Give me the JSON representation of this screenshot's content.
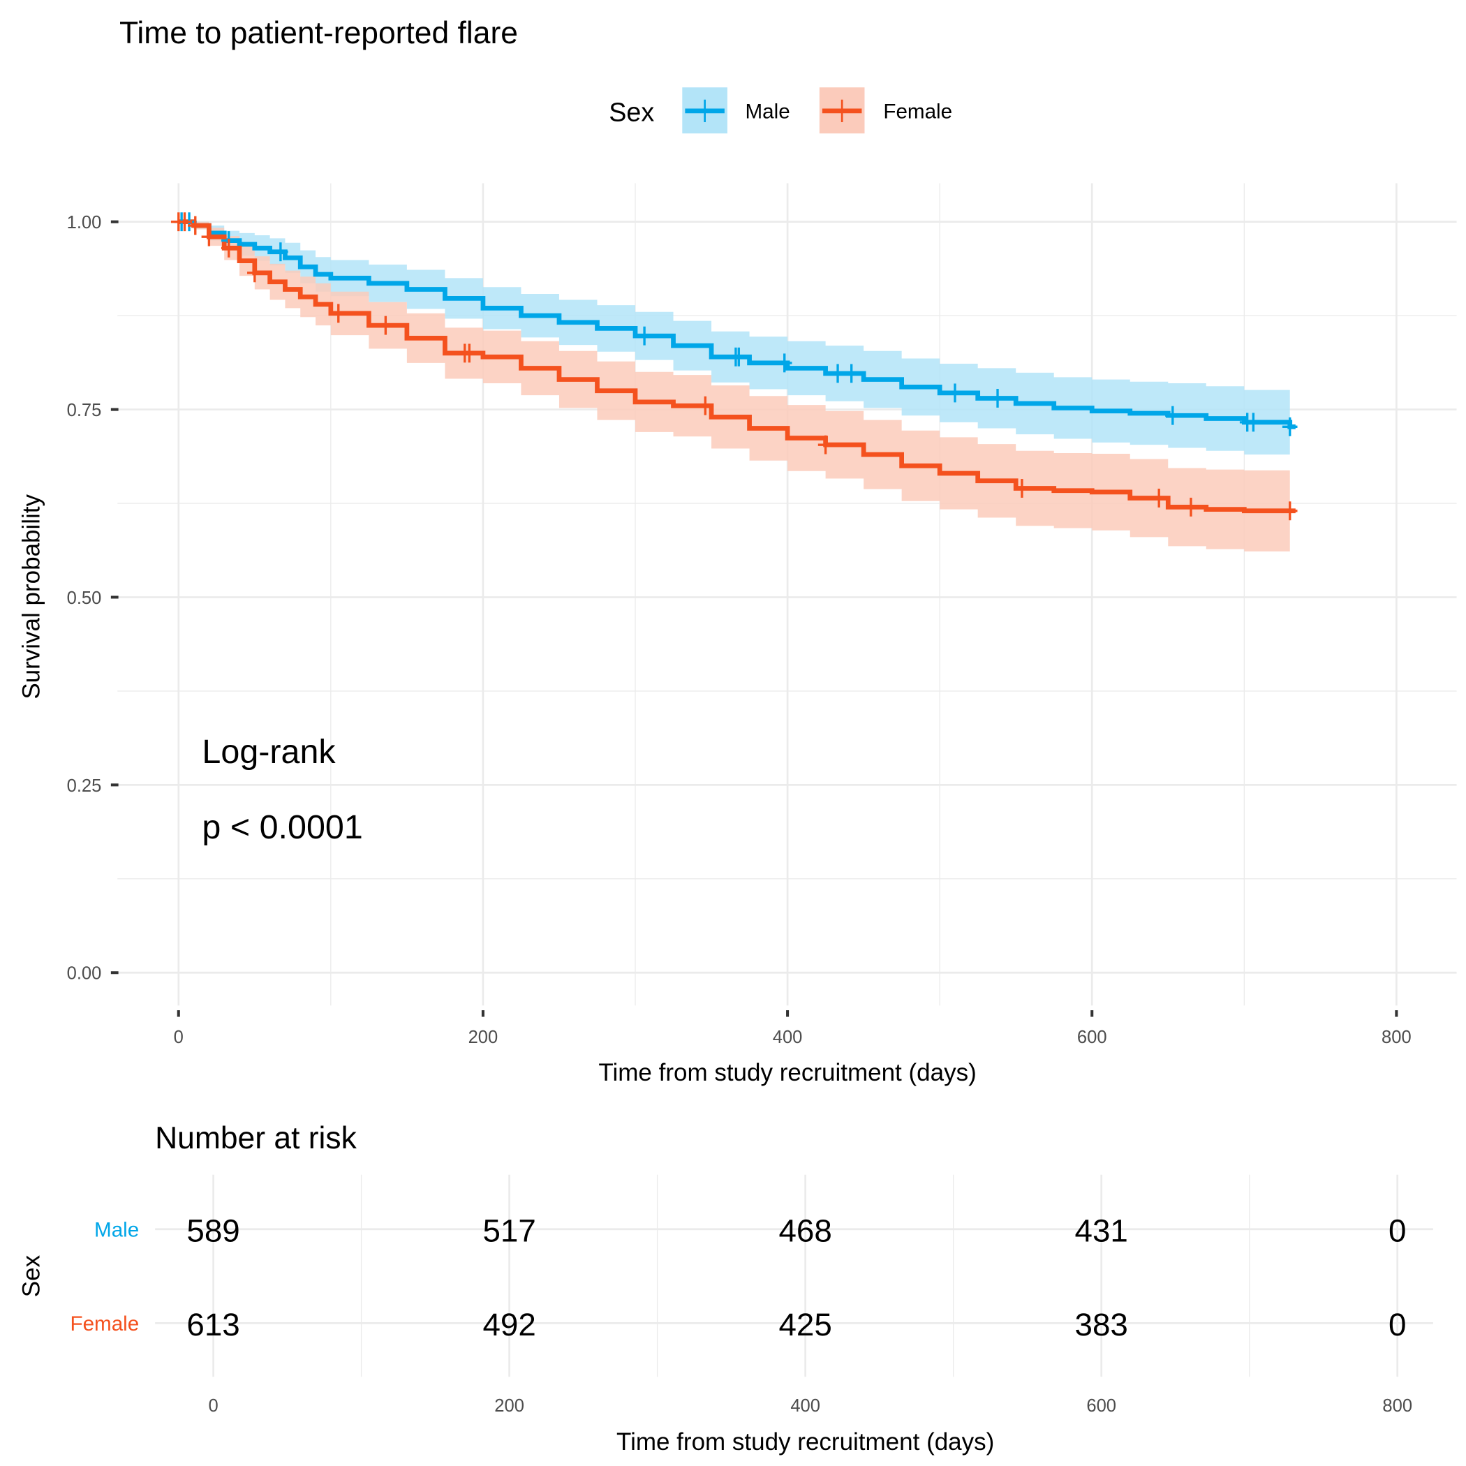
{
  "chart_data": {
    "type": "line",
    "subtype": "kaplan-meier",
    "title": "Time to patient-reported flare",
    "xlabel": "Time from study recruitment (days)",
    "ylabel": "Survival probability",
    "xlim": [
      0,
      800
    ],
    "ylim": [
      0,
      1
    ],
    "x_ticks": [
      "0",
      "200",
      "400",
      "600",
      "800"
    ],
    "y_ticks": [
      "0.00",
      "0.25",
      "0.50",
      "0.75",
      "1.00"
    ],
    "grid": true,
    "legend": {
      "title": "Sex",
      "placement": "top",
      "entries": [
        "Male",
        "Female"
      ]
    },
    "annotations": [
      "Log-rank",
      "p < 0.0001"
    ],
    "series": [
      {
        "name": "Male",
        "color": "#00a6e8",
        "ci_color": "#b3e4f8",
        "x": [
          0,
          10,
          20,
          30,
          40,
          50,
          60,
          70,
          80,
          90,
          100,
          125,
          150,
          175,
          200,
          225,
          250,
          275,
          300,
          325,
          350,
          375,
          400,
          425,
          450,
          475,
          500,
          525,
          550,
          575,
          600,
          625,
          650,
          675,
          700,
          730
        ],
        "y": [
          1.0,
          0.995,
          0.985,
          0.975,
          0.97,
          0.965,
          0.96,
          0.952,
          0.94,
          0.93,
          0.925,
          0.918,
          0.91,
          0.898,
          0.885,
          0.875,
          0.866,
          0.858,
          0.848,
          0.835,
          0.82,
          0.812,
          0.805,
          0.798,
          0.79,
          0.78,
          0.772,
          0.765,
          0.758,
          0.752,
          0.748,
          0.745,
          0.742,
          0.738,
          0.733,
          0.727
        ],
        "lower": [
          1.0,
          0.99,
          0.975,
          0.963,
          0.955,
          0.948,
          0.942,
          0.932,
          0.918,
          0.907,
          0.901,
          0.893,
          0.884,
          0.871,
          0.857,
          0.846,
          0.836,
          0.827,
          0.816,
          0.802,
          0.786,
          0.777,
          0.769,
          0.761,
          0.752,
          0.742,
          0.733,
          0.725,
          0.717,
          0.711,
          0.706,
          0.703,
          0.699,
          0.695,
          0.69,
          0.683
        ],
        "upper": [
          1.0,
          1.0,
          0.995,
          0.988,
          0.985,
          0.982,
          0.978,
          0.972,
          0.962,
          0.953,
          0.949,
          0.943,
          0.936,
          0.925,
          0.913,
          0.904,
          0.896,
          0.889,
          0.88,
          0.868,
          0.854,
          0.847,
          0.841,
          0.835,
          0.828,
          0.818,
          0.811,
          0.805,
          0.799,
          0.793,
          0.79,
          0.787,
          0.785,
          0.781,
          0.776,
          0.771
        ],
        "censored_x": [
          2,
          7,
          33,
          67,
          306,
          366,
          368,
          398,
          433,
          442,
          510,
          538,
          653,
          702,
          706,
          730
        ]
      },
      {
        "name": "Female",
        "color": "#f4511e",
        "ci_color": "#fbcbbb",
        "x": [
          0,
          10,
          20,
          30,
          40,
          50,
          60,
          70,
          80,
          90,
          100,
          125,
          150,
          175,
          200,
          225,
          250,
          275,
          300,
          325,
          350,
          375,
          400,
          425,
          450,
          475,
          500,
          525,
          550,
          575,
          600,
          625,
          650,
          675,
          700,
          730
        ],
        "y": [
          1.0,
          0.995,
          0.98,
          0.965,
          0.948,
          0.932,
          0.92,
          0.91,
          0.9,
          0.89,
          0.878,
          0.862,
          0.845,
          0.825,
          0.82,
          0.805,
          0.79,
          0.775,
          0.76,
          0.755,
          0.74,
          0.725,
          0.712,
          0.703,
          0.69,
          0.675,
          0.665,
          0.655,
          0.645,
          0.642,
          0.64,
          0.632,
          0.62,
          0.617,
          0.615,
          0.615
        ],
        "lower": [
          1.0,
          0.99,
          0.968,
          0.949,
          0.928,
          0.91,
          0.896,
          0.885,
          0.873,
          0.862,
          0.849,
          0.831,
          0.812,
          0.791,
          0.785,
          0.769,
          0.752,
          0.736,
          0.72,
          0.714,
          0.698,
          0.682,
          0.668,
          0.658,
          0.644,
          0.628,
          0.617,
          0.606,
          0.595,
          0.592,
          0.589,
          0.58,
          0.568,
          0.564,
          0.561,
          0.575
        ],
        "upper": [
          1.0,
          1.0,
          0.992,
          0.981,
          0.968,
          0.954,
          0.944,
          0.935,
          0.927,
          0.918,
          0.907,
          0.893,
          0.878,
          0.859,
          0.855,
          0.841,
          0.828,
          0.814,
          0.8,
          0.796,
          0.782,
          0.768,
          0.756,
          0.748,
          0.736,
          0.722,
          0.713,
          0.704,
          0.695,
          0.692,
          0.691,
          0.684,
          0.672,
          0.67,
          0.669,
          0.655
        ],
        "censored_x": [
          0,
          4,
          11,
          20,
          33,
          50,
          105,
          136,
          188,
          191,
          346,
          425,
          554,
          644,
          665,
          730
        ]
      }
    ]
  },
  "risk_table": {
    "title": "Number at risk",
    "ylabel": "Sex",
    "xlabel": "Time from study recruitment (days)",
    "x_ticks": [
      "0",
      "200",
      "400",
      "600",
      "800"
    ],
    "times": [
      0,
      200,
      400,
      600,
      800
    ],
    "rows": [
      {
        "name": "Male",
        "color": "#00a6e8",
        "values": [
          "589",
          "517",
          "468",
          "431",
          "0"
        ]
      },
      {
        "name": "Female",
        "color": "#f4511e",
        "values": [
          "613",
          "492",
          "425",
          "383",
          "0"
        ]
      }
    ]
  }
}
